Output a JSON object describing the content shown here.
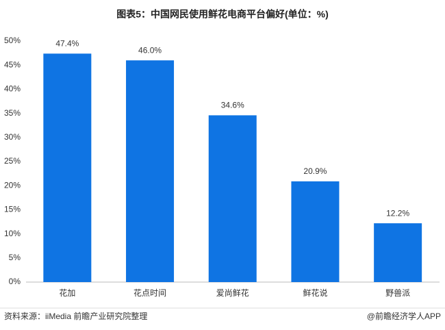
{
  "chart_data": {
    "type": "bar",
    "title": "图表5：中国网民使用鲜花电商平台偏好(单位：%)",
    "categories": [
      "花加",
      "花点时间",
      "爱尚鲜花",
      "鲜花说",
      "野兽派"
    ],
    "values": [
      47.4,
      46.0,
      34.6,
      20.9,
      12.2
    ],
    "value_labels": [
      "47.4%",
      "46.0%",
      "34.6%",
      "20.9%",
      "12.2%"
    ],
    "color": "#0f74e3",
    "ylim": [
      0,
      50
    ],
    "yticks": [
      {
        "value": 0,
        "label": "0%"
      },
      {
        "value": 5,
        "label": "5%"
      },
      {
        "value": 10,
        "label": "10%"
      },
      {
        "value": 15,
        "label": "15%"
      },
      {
        "value": 20,
        "label": "20%"
      },
      {
        "value": 25,
        "label": "25%"
      },
      {
        "value": 30,
        "label": "30%"
      },
      {
        "value": 35,
        "label": "35%"
      },
      {
        "value": 40,
        "label": "40%"
      },
      {
        "value": 45,
        "label": "45%"
      },
      {
        "value": 50,
        "label": "50%"
      }
    ],
    "grid": false,
    "source": "资料来源：iiMedia 前瞻产业研究院整理",
    "credit": "@前瞻经济学人APP"
  }
}
